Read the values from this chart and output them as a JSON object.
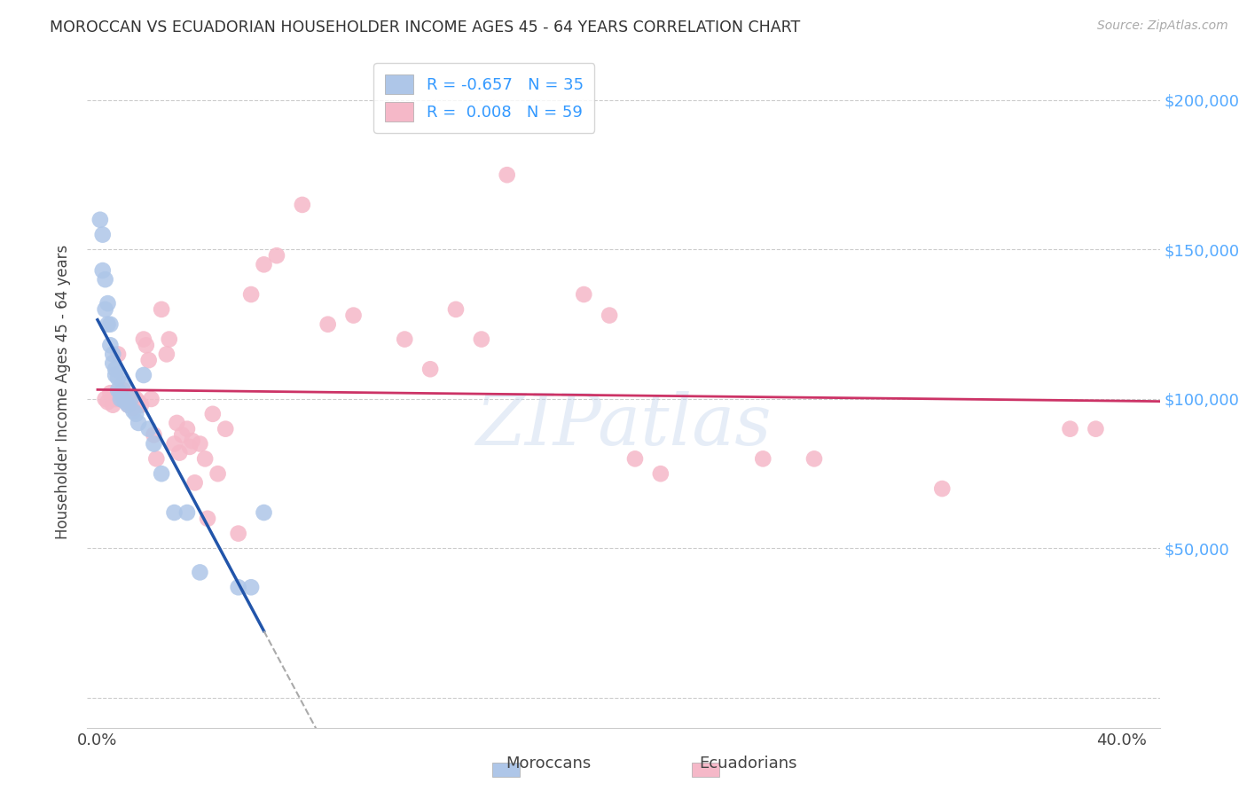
{
  "title": "MOROCCAN VS ECUADORIAN HOUSEHOLDER INCOME AGES 45 - 64 YEARS CORRELATION CHART",
  "source": "Source: ZipAtlas.com",
  "ylabel": "Householder Income Ages 45 - 64 years",
  "xlim": [
    -0.004,
    0.415
  ],
  "ylim": [
    -10000,
    215000
  ],
  "xtick_positions": [
    0.0,
    0.05,
    0.1,
    0.15,
    0.2,
    0.25,
    0.3,
    0.35,
    0.4
  ],
  "xticklabels": [
    "0.0%",
    "",
    "",
    "",
    "",
    "",
    "",
    "",
    "40.0%"
  ],
  "ytick_positions": [
    0,
    50000,
    100000,
    150000,
    200000
  ],
  "ytick_labels": [
    "",
    "$50,000",
    "$100,000",
    "$150,000",
    "$200,000"
  ],
  "moroccan_R": "-0.657",
  "moroccan_N": "35",
  "ecuadorian_R": "0.008",
  "ecuadorian_N": "59",
  "moroccan_color": "#aec6e8",
  "ecuadorian_color": "#f5b8c8",
  "moroccan_line_color": "#2255aa",
  "ecuadorian_line_color": "#cc3366",
  "background_color": "#ffffff",
  "grid_color": "#cccccc",
  "watermark": "ZIPatlas",
  "moroccan_x": [
    0.001,
    0.002,
    0.002,
    0.003,
    0.003,
    0.004,
    0.004,
    0.005,
    0.005,
    0.006,
    0.006,
    0.007,
    0.007,
    0.008,
    0.008,
    0.009,
    0.009,
    0.01,
    0.01,
    0.011,
    0.012,
    0.013,
    0.014,
    0.015,
    0.016,
    0.018,
    0.02,
    0.022,
    0.025,
    0.03,
    0.035,
    0.04,
    0.055,
    0.06,
    0.065
  ],
  "moroccan_y": [
    160000,
    155000,
    143000,
    140000,
    130000,
    132000,
    125000,
    118000,
    125000,
    115000,
    112000,
    110000,
    108000,
    107000,
    103000,
    102000,
    100000,
    105000,
    100000,
    99000,
    98000,
    100000,
    96000,
    95000,
    92000,
    108000,
    90000,
    85000,
    75000,
    62000,
    62000,
    42000,
    37000,
    37000,
    62000
  ],
  "ecuadorian_x": [
    0.003,
    0.004,
    0.005,
    0.006,
    0.007,
    0.008,
    0.009,
    0.01,
    0.011,
    0.012,
    0.013,
    0.014,
    0.015,
    0.016,
    0.017,
    0.018,
    0.019,
    0.02,
    0.021,
    0.022,
    0.023,
    0.025,
    0.027,
    0.028,
    0.03,
    0.031,
    0.032,
    0.033,
    0.035,
    0.036,
    0.037,
    0.038,
    0.04,
    0.042,
    0.043,
    0.045,
    0.047,
    0.05,
    0.055,
    0.06,
    0.065,
    0.07,
    0.08,
    0.09,
    0.1,
    0.12,
    0.13,
    0.14,
    0.15,
    0.16,
    0.19,
    0.2,
    0.21,
    0.22,
    0.26,
    0.28,
    0.33,
    0.38,
    0.39
  ],
  "ecuadorian_y": [
    100000,
    99000,
    102000,
    98000,
    100000,
    115000,
    100000,
    103000,
    100000,
    98000,
    101000,
    97000,
    100000,
    99000,
    98000,
    120000,
    118000,
    113000,
    100000,
    88000,
    80000,
    130000,
    115000,
    120000,
    85000,
    92000,
    82000,
    88000,
    90000,
    84000,
    86000,
    72000,
    85000,
    80000,
    60000,
    95000,
    75000,
    90000,
    55000,
    135000,
    145000,
    148000,
    165000,
    125000,
    128000,
    120000,
    110000,
    130000,
    120000,
    175000,
    135000,
    128000,
    80000,
    75000,
    80000,
    80000,
    70000,
    90000,
    90000
  ]
}
